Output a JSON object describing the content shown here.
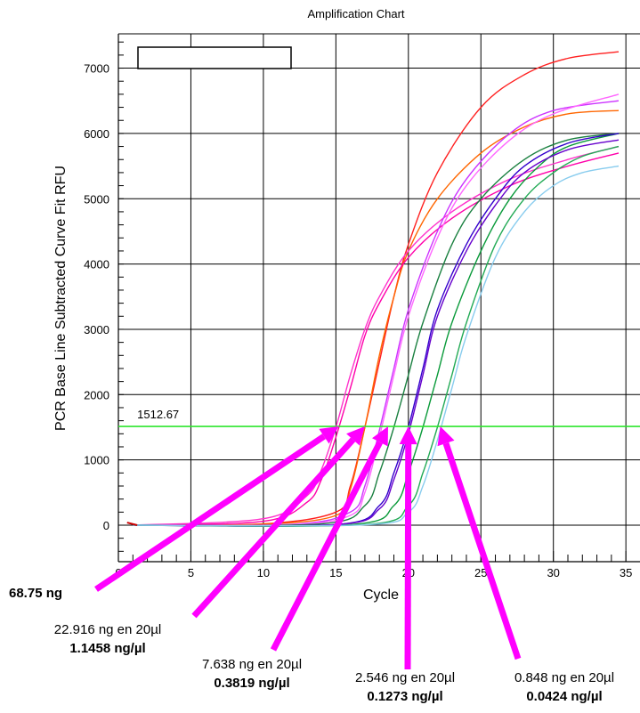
{
  "chart_data": {
    "type": "line",
    "title": "Amplification Chart",
    "xlabel": "Cycle",
    "ylabel": "PCR Base Line Subtracted Curve Fit RFU",
    "xlim": [
      0,
      35
    ],
    "ylim": [
      -400,
      7700
    ],
    "x_ticks": [
      "0",
      "5",
      "10",
      "15",
      "20",
      "25",
      "30",
      "35"
    ],
    "y_ticks": [
      "0",
      "1000",
      "2000",
      "3000",
      "4000",
      "5000",
      "6000",
      "7000"
    ],
    "grid": true,
    "legend": "top-left, empty box",
    "threshold": {
      "value": 1512.67,
      "label": "1512.67",
      "color": "#2ee62e"
    },
    "series": [
      {
        "color": "#ff2020",
        "values_at_cycles": {
          "x": [
            1,
            10,
            15,
            16,
            17,
            18,
            19,
            20,
            22,
            25,
            28,
            31,
            34.5
          ],
          "y": [
            0,
            20,
            200,
            600,
            1500,
            2500,
            3500,
            4300,
            5400,
            6400,
            6900,
            7150,
            7250
          ]
        }
      },
      {
        "color": "#ff6600",
        "values_at_cycles": {
          "x": [
            1,
            10,
            15,
            16,
            17,
            18,
            19,
            20,
            22,
            25,
            28,
            31,
            34.5
          ],
          "y": [
            0,
            15,
            150,
            550,
            1500,
            2600,
            3500,
            4200,
            5000,
            5700,
            6100,
            6300,
            6350
          ]
        }
      },
      {
        "color": "#ff33cc",
        "values_at_cycles": {
          "x": [
            1,
            10,
            13,
            14,
            15,
            16,
            17,
            18,
            20,
            23,
            27,
            31,
            34.5
          ],
          "y": [
            0,
            100,
            450,
            850,
            1500,
            2300,
            3000,
            3500,
            4200,
            4800,
            5300,
            5600,
            5800
          ]
        }
      },
      {
        "color": "#ff00aa",
        "values_at_cycles": {
          "x": [
            1,
            10,
            13,
            14,
            15,
            16,
            17,
            18,
            20,
            23,
            27,
            31,
            34.5
          ],
          "y": [
            0,
            60,
            350,
            700,
            1350,
            2100,
            2900,
            3400,
            4100,
            4700,
            5200,
            5500,
            5700
          ]
        }
      },
      {
        "color": "#cc33ff",
        "values_at_cycles": {
          "x": [
            1,
            12,
            16,
            17,
            18,
            19,
            20,
            22,
            24,
            27,
            30,
            34.5
          ],
          "y": [
            0,
            15,
            200,
            600,
            1450,
            2400,
            3300,
            4500,
            5300,
            6000,
            6350,
            6500
          ]
        }
      },
      {
        "color": "#ff66ff",
        "values_at_cycles": {
          "x": [
            1,
            12,
            16,
            17,
            18,
            19,
            20,
            22,
            24,
            27,
            30,
            34.5
          ],
          "y": [
            0,
            10,
            150,
            500,
            1350,
            2300,
            3200,
            4400,
            5200,
            5900,
            6300,
            6600
          ]
        }
      },
      {
        "color": "#1a8040",
        "values_at_cycles": {
          "x": [
            1,
            14,
            17,
            18,
            19,
            20,
            21,
            23,
            25,
            28,
            31,
            34.5
          ],
          "y": [
            0,
            20,
            300,
            800,
            1500,
            2300,
            3100,
            4300,
            5000,
            5600,
            5900,
            6000
          ]
        }
      },
      {
        "color": "#0a9a3a",
        "values_at_cycles": {
          "x": [
            1,
            16,
            19,
            20,
            21,
            22,
            23,
            25,
            27,
            29,
            31,
            34.5
          ],
          "y": [
            0,
            10,
            300,
            800,
            1500,
            2300,
            3100,
            4200,
            5000,
            5500,
            5800,
            6000
          ]
        }
      },
      {
        "color": "#3300cc",
        "values_at_cycles": {
          "x": [
            1,
            15,
            18,
            19,
            20,
            21,
            22,
            24,
            26,
            28,
            31,
            34.5
          ],
          "y": [
            0,
            10,
            300,
            800,
            1500,
            2400,
            3300,
            4300,
            5000,
            5500,
            5850,
            6000
          ]
        }
      },
      {
        "color": "#6600cc",
        "values_at_cycles": {
          "x": [
            1,
            15,
            18,
            19,
            20,
            21,
            22,
            24,
            26,
            28,
            31,
            34.5
          ],
          "y": [
            0,
            10,
            250,
            700,
            1400,
            2300,
            3200,
            4200,
            4900,
            5400,
            5750,
            5900
          ]
        }
      },
      {
        "color": "#22aa55",
        "values_at_cycles": {
          "x": [
            1,
            17,
            20,
            21,
            22,
            23,
            24,
            26,
            28,
            30,
            32,
            34.5
          ],
          "y": [
            0,
            10,
            300,
            800,
            1500,
            2300,
            3100,
            4300,
            5000,
            5400,
            5650,
            5800
          ]
        }
      },
      {
        "color": "#88ccee",
        "values_at_cycles": {
          "x": [
            1,
            17,
            20,
            21,
            22,
            23,
            24,
            26,
            28,
            30,
            32,
            34.5
          ],
          "y": [
            0,
            5,
            200,
            600,
            1300,
            2100,
            2900,
            4100,
            4800,
            5200,
            5400,
            5500
          ]
        }
      }
    ],
    "annotations": [
      {
        "lines": [
          "68.75 ng"
        ],
        "bold": [
          true
        ],
        "arrow_to_cycle": 15.2,
        "arrow_color": "#ff00ff"
      },
      {
        "lines": [
          "22.916 ng en 20µl",
          "1.1458 ng/µl"
        ],
        "bold": [
          false,
          true
        ],
        "arrow_to_cycle": 17.0,
        "arrow_color": "#ff00ff"
      },
      {
        "lines": [
          "7.638 ng en 20µl",
          "0.3819 ng/µl"
        ],
        "bold": [
          false,
          true
        ],
        "arrow_to_cycle": 18.6,
        "arrow_color": "#ff00ff"
      },
      {
        "lines": [
          "2.546 ng en 20µl",
          "0.1273 ng/µl"
        ],
        "bold": [
          false,
          true
        ],
        "arrow_to_cycle": 20.0,
        "arrow_color": "#ff00ff"
      },
      {
        "lines": [
          "0.848 ng en 20µl",
          "0.0424 ng/µl"
        ],
        "bold": [
          false,
          true
        ],
        "arrow_to_cycle": 22.2,
        "arrow_color": "#ff00ff"
      }
    ]
  }
}
